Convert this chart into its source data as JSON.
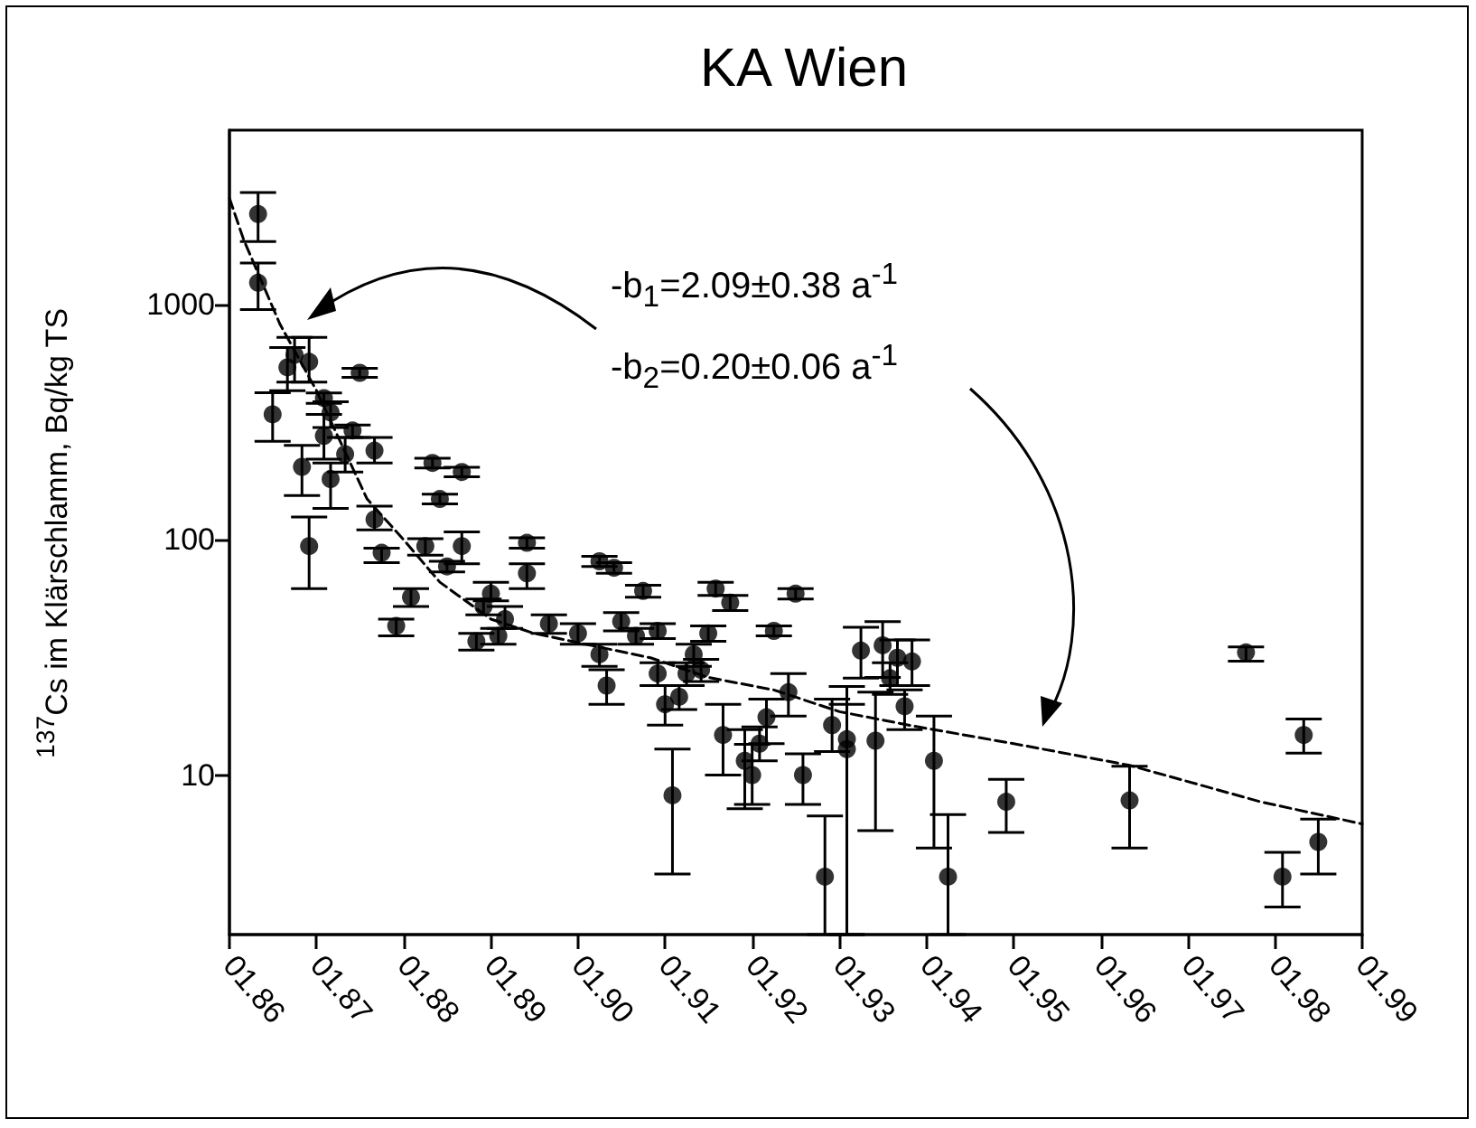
{
  "chart_data": {
    "type": "scatter",
    "title": "KA Wien",
    "ylabel": "$^{137}$Cs im Klärschlamm, Bq/kg TS",
    "annotations": [
      "-b$_{1}$=2.09±0.38 a$^{-1}$",
      "-b$_{2}$=0.20±0.06 a$^{-1}$"
    ],
    "log": "y",
    "grid": false,
    "xlim": [
      "1986-01",
      "1999-01"
    ],
    "xticks": [
      {
        "value": "1986-01",
        "label": "01.86"
      },
      {
        "value": "1987-01",
        "label": "01.87"
      },
      {
        "value": "1988-01",
        "label": "01.88"
      },
      {
        "value": "1989-01",
        "label": "01.89"
      },
      {
        "value": "1990-01",
        "label": "01.90"
      },
      {
        "value": "1991-01",
        "label": "01.91"
      },
      {
        "value": "1992-01",
        "label": "01.92"
      },
      {
        "value": "1993-01",
        "label": "01.93"
      },
      {
        "value": "1994-01",
        "label": "01.94"
      },
      {
        "value": "1995-01",
        "label": "01.95"
      },
      {
        "value": "1996-01",
        "label": "01.96"
      },
      {
        "value": "1997-01",
        "label": "01.97"
      },
      {
        "value": "1998-01",
        "label": "01.98"
      },
      {
        "value": "1999-01",
        "label": "01.99"
      }
    ],
    "ylim": [
      2.1,
      5500
    ],
    "yticks": [
      10,
      100,
      1000
    ],
    "series": [
      {
        "color": "#000000",
        "marker": "circle",
        "x": [
          "1986-05",
          "1986-05",
          "1986-07",
          "1986-09",
          "1986-10",
          "1986-11",
          "1986-12",
          "1986-12",
          "1987-02",
          "1987-02",
          "1987-03",
          "1987-03",
          "1987-05",
          "1987-06",
          "1987-07",
          "1987-09",
          "1987-09",
          "1987-10",
          "1987-12",
          "1988-02",
          "1988-04",
          "1988-05",
          "1988-06",
          "1988-07",
          "1988-09",
          "1988-09",
          "1988-11",
          "1988-12",
          "1989-01",
          "1989-02",
          "1989-03",
          "1989-06",
          "1989-06",
          "1989-09",
          "1990-01",
          "1990-04",
          "1990-04",
          "1990-05",
          "1990-06",
          "1990-07",
          "1990-09",
          "1990-10",
          "1990-12",
          "1990-12",
          "1991-01",
          "1991-02",
          "1991-03",
          "1991-04",
          "1991-05",
          "1991-06",
          "1991-07",
          "1991-08",
          "1991-09",
          "1991-10",
          "1991-12",
          "1992-01",
          "1992-02",
          "1992-03",
          "1992-04",
          "1992-06",
          "1992-07",
          "1992-08",
          "1992-11",
          "1992-12",
          "1993-02",
          "1993-02",
          "1993-04",
          "1993-06",
          "1993-07",
          "1993-08",
          "1993-09",
          "1993-10",
          "1993-11",
          "1994-02",
          "1994-04",
          "1994-12",
          "1996-05",
          "1997-09",
          "1998-02",
          "1998-05",
          "1998-07"
        ],
        "values": [
          2420,
          1236,
          341,
          540,
          610,
          204,
          570,
          94,
          276,
          400,
          347,
          181,
          231,
          291,
          512,
          239,
          122,
          88,
          43,
          57,
          94,
          212,
          149,
          77,
          194,
          94,
          37,
          52,
          59,
          39,
          46,
          97,
          72,
          44,
          40,
          81,
          32.6,
          24,
          76,
          45,
          39,
          60.6,
          41,
          27,
          20,
          8.2,
          21.5,
          27,
          32.6,
          28,
          40,
          62,
          14.8,
          54,
          11.5,
          10,
          13.6,
          17.6,
          41,
          22.5,
          59,
          10,
          3.7,
          16.3,
          14.2,
          12.9,
          33.8,
          14,
          35.6,
          25.8,
          31.5,
          19.6,
          30.4,
          11.5,
          3.7,
          7.7,
          7.8,
          33.2,
          3.7,
          14.8,
          5.2
        ],
        "errors": [
          [
            1850,
            2990
          ],
          [
            950,
            1500
          ],
          [
            262,
            421
          ],
          [
            430,
            655
          ],
          [
            468,
            725
          ],
          [
            154,
            252
          ],
          [
            468,
            725
          ],
          [
            62,
            125
          ],
          [
            220,
            341
          ],
          [
            380,
            420
          ],
          [
            300,
            386
          ],
          [
            136,
            212
          ],
          [
            194,
            272
          ],
          [
            272,
            307
          ],
          [
            490,
            535
          ],
          [
            212,
            272
          ],
          [
            110,
            139
          ],
          [
            80,
            92
          ],
          [
            39,
            46
          ],
          [
            52,
            62
          ],
          [
            86,
            101
          ],
          [
            202,
            222
          ],
          [
            142,
            156
          ],
          [
            73,
            81
          ],
          [
            185,
            203
          ],
          [
            79,
            108
          ],
          [
            34,
            40
          ],
          [
            48,
            56
          ],
          [
            55,
            66
          ],
          [
            36,
            42
          ],
          [
            42,
            52
          ],
          [
            92,
            102
          ],
          [
            62,
            79
          ],
          [
            40,
            48
          ],
          [
            36,
            44
          ],
          [
            77,
            85
          ],
          [
            29,
            36
          ],
          [
            20,
            28
          ],
          [
            72,
            80
          ],
          [
            41,
            49
          ],
          [
            36,
            42
          ],
          [
            57,
            64
          ],
          [
            38,
            44
          ],
          [
            24,
            30
          ],
          [
            16.3,
            24
          ],
          [
            3.8,
            12.9
          ],
          [
            19,
            24
          ],
          [
            24,
            30
          ],
          [
            29,
            36
          ],
          [
            25,
            31
          ],
          [
            37,
            43
          ],
          [
            58,
            66
          ],
          [
            10,
            20
          ],
          [
            50,
            58
          ],
          [
            7.2,
            15.6
          ],
          [
            7.5,
            13.5
          ],
          [
            11.5,
            16
          ],
          [
            13.6,
            21
          ],
          [
            39,
            43
          ],
          [
            17.8,
            27
          ],
          [
            56,
            62
          ],
          [
            7.5,
            12.3
          ],
          [
            2.1,
            6.7
          ],
          [
            12.6,
            21
          ],
          [
            2.1,
            23.8
          ],
          [
            2.1,
            20
          ],
          [
            25.8,
            42.5
          ],
          [
            5.8,
            22.5
          ],
          [
            26,
            44.9
          ],
          [
            22,
            30
          ],
          [
            24,
            37.5
          ],
          [
            15.6,
            23
          ],
          [
            24,
            37.5
          ],
          [
            4.9,
            17.8
          ],
          [
            2.1,
            6.8
          ],
          [
            5.7,
            9.6
          ],
          [
            4.9,
            10.9
          ],
          [
            30.5,
            35
          ],
          [
            2.75,
            4.7
          ],
          [
            12.4,
            17.3
          ],
          [
            3.8,
            6.5
          ]
        ]
      },
      {
        "type": "line",
        "color": "#000000",
        "marker": "none",
        "line_style": "dashed",
        "x": [
          "1986-01",
          "1986-03",
          "1986-08",
          "1987-01",
          "1987-08",
          "1988-01",
          "1988-06",
          "1989-01",
          "1989-07",
          "1990-11",
          "1991-07",
          "1992-04",
          "1993-01",
          "1993-11",
          "1995-01",
          "1996-05",
          "1997-11",
          "1999-01"
        ],
        "values": [
          2830,
          1890,
          823,
          430,
          149,
          100,
          66,
          46,
          40,
          31.5,
          26,
          23,
          18.6,
          16.2,
          13.6,
          11,
          7.7,
          6.2
        ]
      }
    ]
  }
}
